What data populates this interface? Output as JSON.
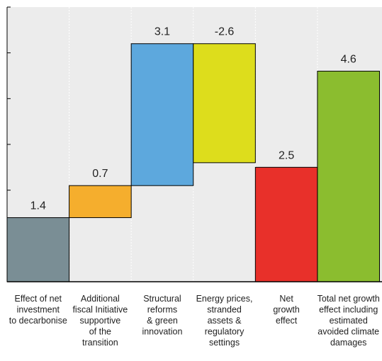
{
  "chart_data": {
    "type": "bar",
    "subtype": "waterfall",
    "title": "",
    "xlabel": "",
    "ylabel": "",
    "ylim": [
      0,
      6
    ],
    "y_tick_labels_shown": false,
    "grid": false,
    "plot_background": "#ececec",
    "categories": [
      "Effect of net investment to decarbonise",
      "Additional fiscal Initiative supportive of the transition",
      "Structural reforms & green innovation",
      "Energy prices, stranded assets & regulatory settings",
      "Net growth effect",
      "Total net growth effect including estimated avoided climate damages"
    ],
    "category_label_lines": [
      [
        "Effect of net",
        "investment",
        "to decarbonise"
      ],
      [
        "Additional",
        "fiscal Initiative",
        "supportive",
        "of the",
        "transition"
      ],
      [
        "Structural",
        "reforms",
        "& green",
        "innovation"
      ],
      [
        "Energy prices,",
        "stranded",
        "assets &",
        "regulatory",
        "settings"
      ],
      [
        "Net",
        "growth",
        "effect"
      ],
      [
        "Total net growth",
        "effect including",
        "estimated",
        "avoided climate",
        "damages"
      ]
    ],
    "values": [
      1.4,
      0.7,
      3.1,
      -2.6,
      2.5,
      4.6
    ],
    "value_labels": [
      "1.4",
      "0.7",
      "3.1",
      "-2.6",
      "2.5",
      "4.6"
    ],
    "bars": [
      {
        "start": 0,
        "end": 1.4,
        "color": "#7a8e95"
      },
      {
        "start": 1.4,
        "end": 2.1,
        "color": "#f5ae2d"
      },
      {
        "start": 2.1,
        "end": 5.2,
        "color": "#5da8dd"
      },
      {
        "start": 5.2,
        "end": 2.6,
        "color": "#dddd1c"
      },
      {
        "start": 0,
        "end": 2.5,
        "color": "#e8302a"
      },
      {
        "start": 0,
        "end": 4.6,
        "color": "#8bbd2f"
      }
    ]
  }
}
